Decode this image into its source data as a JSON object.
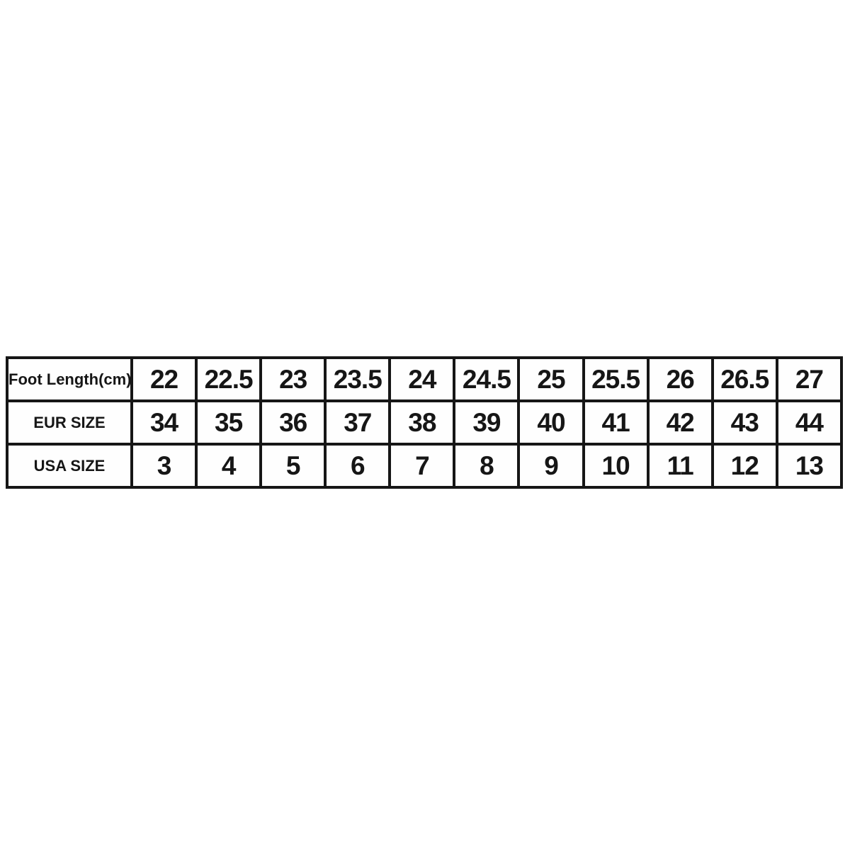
{
  "colors": {
    "background": "#ffffff",
    "border": "#161616",
    "black_text": "#161616",
    "red_text": "#ee1c1c",
    "cell_background": "#fefefe"
  },
  "chart_data": {
    "type": "table",
    "rows": [
      {
        "label": "Foot Length(cm)",
        "color": "black",
        "values": [
          "22",
          "22.5",
          "23",
          "23.5",
          "24",
          "24.5",
          "25",
          "25.5",
          "26",
          "26.5",
          "27"
        ]
      },
      {
        "label": "EUR SIZE",
        "color": "red",
        "values": [
          "34",
          "35",
          "36",
          "37",
          "38",
          "39",
          "40",
          "41",
          "42",
          "43",
          "44"
        ]
      },
      {
        "label": "USA SIZE",
        "color": "black",
        "values": [
          "3",
          "4",
          "5",
          "6",
          "7",
          "8",
          "9",
          "10",
          "11",
          "12",
          "13"
        ]
      }
    ]
  }
}
